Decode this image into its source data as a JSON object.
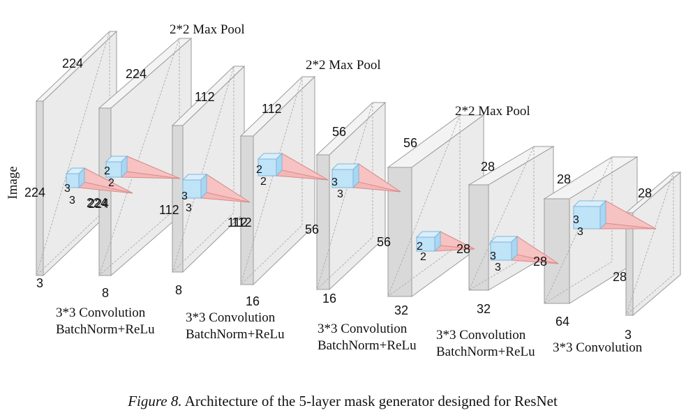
{
  "figure": {
    "input_label": "Image",
    "caption_prefix": "Figure 8.",
    "caption_text": "Architecture of the 5-layer mask generator designed for ResNet"
  },
  "pools": [
    "2*2 Max Pool",
    "2*2 Max Pool",
    "2*2 Max Pool"
  ],
  "ops": [
    {
      "line1": "3*3 Convolution",
      "line2": "BatchNorm+ReLu"
    },
    {
      "line1": "3*3 Convolution",
      "line2": "BatchNorm+ReLu"
    },
    {
      "line1": "3*3 Convolution",
      "line2": "BatchNorm+ReLu"
    },
    {
      "line1": "3*3 Convolution",
      "line2": "BatchNorm+ReLu"
    },
    {
      "line1": "3*3 Convolution",
      "line2": ""
    }
  ],
  "tensors": [
    {
      "height": "224",
      "width": "224",
      "channels": "3"
    },
    {
      "height": "224",
      "width": "224",
      "channels": "8"
    },
    {
      "height": "112",
      "width": "112",
      "channels": "8"
    },
    {
      "height": "112",
      "width": "112",
      "channels": "16"
    },
    {
      "height": "56",
      "width": "56",
      "channels": "16"
    },
    {
      "height": "56",
      "width": "56",
      "channels": "32"
    },
    {
      "height": "28",
      "width": "",
      "channels": "32"
    },
    {
      "height": "28",
      "width": "",
      "channels": "64"
    },
    {
      "height": "28",
      "width": "28",
      "channels": "3"
    }
  ],
  "kernels": [
    {
      "a": "3",
      "b": "3",
      "target": "224"
    },
    {
      "a": "2",
      "b": "2",
      "target": ""
    },
    {
      "a": "3",
      "b": "3",
      "target": "112"
    },
    {
      "a": "2",
      "b": "2",
      "target": ""
    },
    {
      "a": "3",
      "b": "3",
      "target": ""
    },
    {
      "a": "2",
      "b": "2",
      "target": "28"
    },
    {
      "a": "3",
      "b": "3",
      "target": "28"
    },
    {
      "a": "3",
      "b": "3",
      "target": ""
    }
  ],
  "colors": {
    "plate_face": "#ebebeb",
    "plate_side": "#d9d9d9",
    "plate_edge": "#9a9a9a",
    "kernel_fill": "#bfe3f7",
    "kernel_edge": "#7fb6d9",
    "cone_fill": "#f4b6b6",
    "cone_edge": "#d98a8a"
  }
}
